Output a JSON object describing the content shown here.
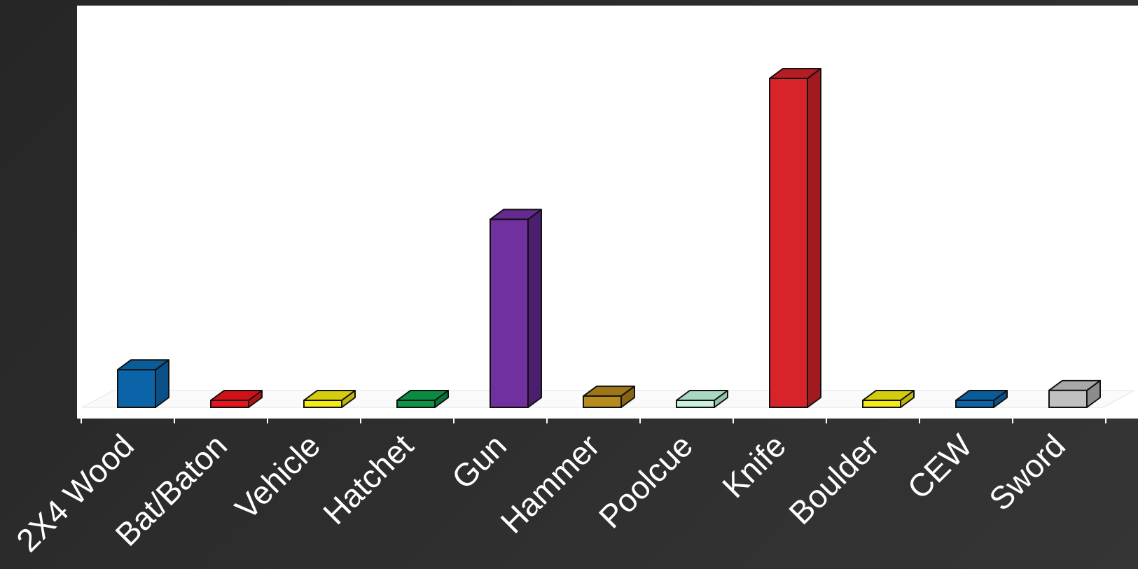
{
  "chart_data": {
    "type": "bar",
    "categories": [
      "2X4 Wood",
      "Bat/Baton",
      "Vehicle",
      "Hatchet",
      "Gun",
      "Hammer",
      "Poolcue",
      "Knife",
      "Boulder",
      "CEW",
      "Sword"
    ],
    "values": [
      2.0,
      0.3,
      0.3,
      0.3,
      10.0,
      0.6,
      0.3,
      17.5,
      0.3,
      0.3,
      0.9
    ],
    "ylim": [
      0,
      20
    ],
    "grid": false,
    "legend": false,
    "style": "3d",
    "colors": [
      {
        "front": "#0b64a8",
        "top": "#0a5c99",
        "side": "#0a4f85"
      },
      {
        "front": "#e8141b",
        "top": "#d01218",
        "side": "#b50f14"
      },
      {
        "front": "#f4ec12",
        "top": "#d4cc0e",
        "side": "#bdb50c"
      },
      {
        "front": "#0a9548",
        "top": "#0a8a42",
        "side": "#087538"
      },
      {
        "front": "#7030a0",
        "top": "#652a91",
        "side": "#4c1f6e"
      },
      {
        "front": "#b88b1e",
        "top": "#9e7517",
        "side": "#876313"
      },
      {
        "front": "#c8f0dc",
        "top": "#a8d8c0",
        "side": "#90c2aa"
      },
      {
        "front": "#d9232b",
        "top": "#b51d24",
        "side": "#a01a20"
      },
      {
        "front": "#f4ec12",
        "top": "#d4cc0e",
        "side": "#bdb50c"
      },
      {
        "front": "#0b64a8",
        "top": "#0a5c99",
        "side": "#0a4f85"
      },
      {
        "front": "#c0c0c0",
        "top": "#a8a8a8",
        "side": "#8c8c8c"
      }
    ]
  }
}
